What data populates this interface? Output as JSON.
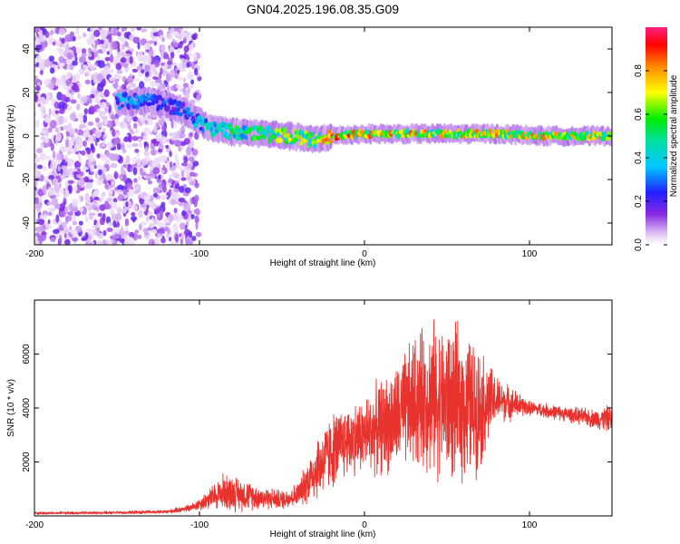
{
  "title": "GN04.2025.196.08.35.G09",
  "chart_data": [
    {
      "type": "heatmap",
      "xlabel": "Height of straight line (km)",
      "ylabel": "Frequency (Hz)",
      "xlim": [
        -200,
        150
      ],
      "ylim": [
        -50,
        50
      ],
      "xticks": [
        -200,
        -100,
        0,
        100
      ],
      "yticks": [
        -40,
        -20,
        0,
        20,
        40
      ],
      "colorbar": {
        "label": "Normalized spectral amplitude",
        "range": [
          0.0,
          1.0
        ],
        "ticks": [
          0.0,
          0.2,
          0.4,
          0.6,
          0.8
        ],
        "tick_labels": [
          "0.0",
          "0.2",
          "0.4",
          "0.6",
          "0.8"
        ],
        "colormap": "rainbow (white-violet-blue-cyan-green-yellow-red-magenta)"
      },
      "features": {
        "noise_region_x": [
          -200,
          -100
        ],
        "carrier_trace": [
          {
            "x": -150,
            "freq": 16,
            "amp": 0.35
          },
          {
            "x": -130,
            "freq": 16,
            "amp": 0.3
          },
          {
            "x": -110,
            "freq": 12,
            "amp": 0.25
          },
          {
            "x": -95,
            "freq": 4,
            "amp": 0.45
          },
          {
            "x": -80,
            "freq": 2,
            "amp": 0.55
          },
          {
            "x": -60,
            "freq": 1,
            "amp": 0.55
          },
          {
            "x": -45,
            "freq": 0,
            "amp": 0.7
          },
          {
            "x": -30,
            "freq": -2,
            "amp": 0.6
          },
          {
            "x": -20,
            "freq": 0,
            "amp": 0.85
          },
          {
            "x": 0,
            "freq": 1,
            "amp": 0.75
          },
          {
            "x": 20,
            "freq": 1,
            "amp": 0.8
          },
          {
            "x": 50,
            "freq": 1,
            "amp": 0.7
          },
          {
            "x": 80,
            "freq": 1,
            "amp": 0.75
          },
          {
            "x": 110,
            "freq": 0,
            "amp": 0.8
          },
          {
            "x": 150,
            "freq": 0,
            "amp": 0.7
          }
        ]
      }
    },
    {
      "type": "line",
      "xlabel": "Height of straight line (km)",
      "ylabel": "SNR (10 * v/v)",
      "xlim": [
        -200,
        150
      ],
      "ylim": [
        0,
        8000
      ],
      "xticks": [
        -200,
        -100,
        0,
        100
      ],
      "yticks": [
        2000,
        4000,
        6000
      ],
      "color": "#e8322d",
      "envelope": [
        {
          "x": -200,
          "mean": 100,
          "amp": 60
        },
        {
          "x": -150,
          "mean": 120,
          "amp": 60
        },
        {
          "x": -120,
          "mean": 150,
          "amp": 80
        },
        {
          "x": -105,
          "mean": 300,
          "amp": 150
        },
        {
          "x": -95,
          "mean": 600,
          "amp": 400
        },
        {
          "x": -85,
          "mean": 900,
          "amp": 800
        },
        {
          "x": -75,
          "mean": 800,
          "amp": 700
        },
        {
          "x": -65,
          "mean": 700,
          "amp": 500
        },
        {
          "x": -50,
          "mean": 600,
          "amp": 400
        },
        {
          "x": -40,
          "mean": 800,
          "amp": 500
        },
        {
          "x": -30,
          "mean": 1700,
          "amp": 1300
        },
        {
          "x": -20,
          "mean": 2400,
          "amp": 1600
        },
        {
          "x": -10,
          "mean": 2800,
          "amp": 1500
        },
        {
          "x": 0,
          "mean": 3000,
          "amp": 1600
        },
        {
          "x": 10,
          "mean": 3300,
          "amp": 2000
        },
        {
          "x": 20,
          "mean": 3600,
          "amp": 2300
        },
        {
          "x": 30,
          "mean": 4200,
          "amp": 2800
        },
        {
          "x": 40,
          "mean": 4400,
          "amp": 3200
        },
        {
          "x": 50,
          "mean": 4200,
          "amp": 3300
        },
        {
          "x": 60,
          "mean": 4100,
          "amp": 3200
        },
        {
          "x": 70,
          "mean": 4000,
          "amp": 2600
        },
        {
          "x": 80,
          "mean": 4300,
          "amp": 1000
        },
        {
          "x": 100,
          "mean": 4000,
          "amp": 300
        },
        {
          "x": 120,
          "mean": 3800,
          "amp": 300
        },
        {
          "x": 140,
          "mean": 3600,
          "amp": 400
        },
        {
          "x": 150,
          "mean": 3600,
          "amp": 600
        }
      ]
    }
  ]
}
